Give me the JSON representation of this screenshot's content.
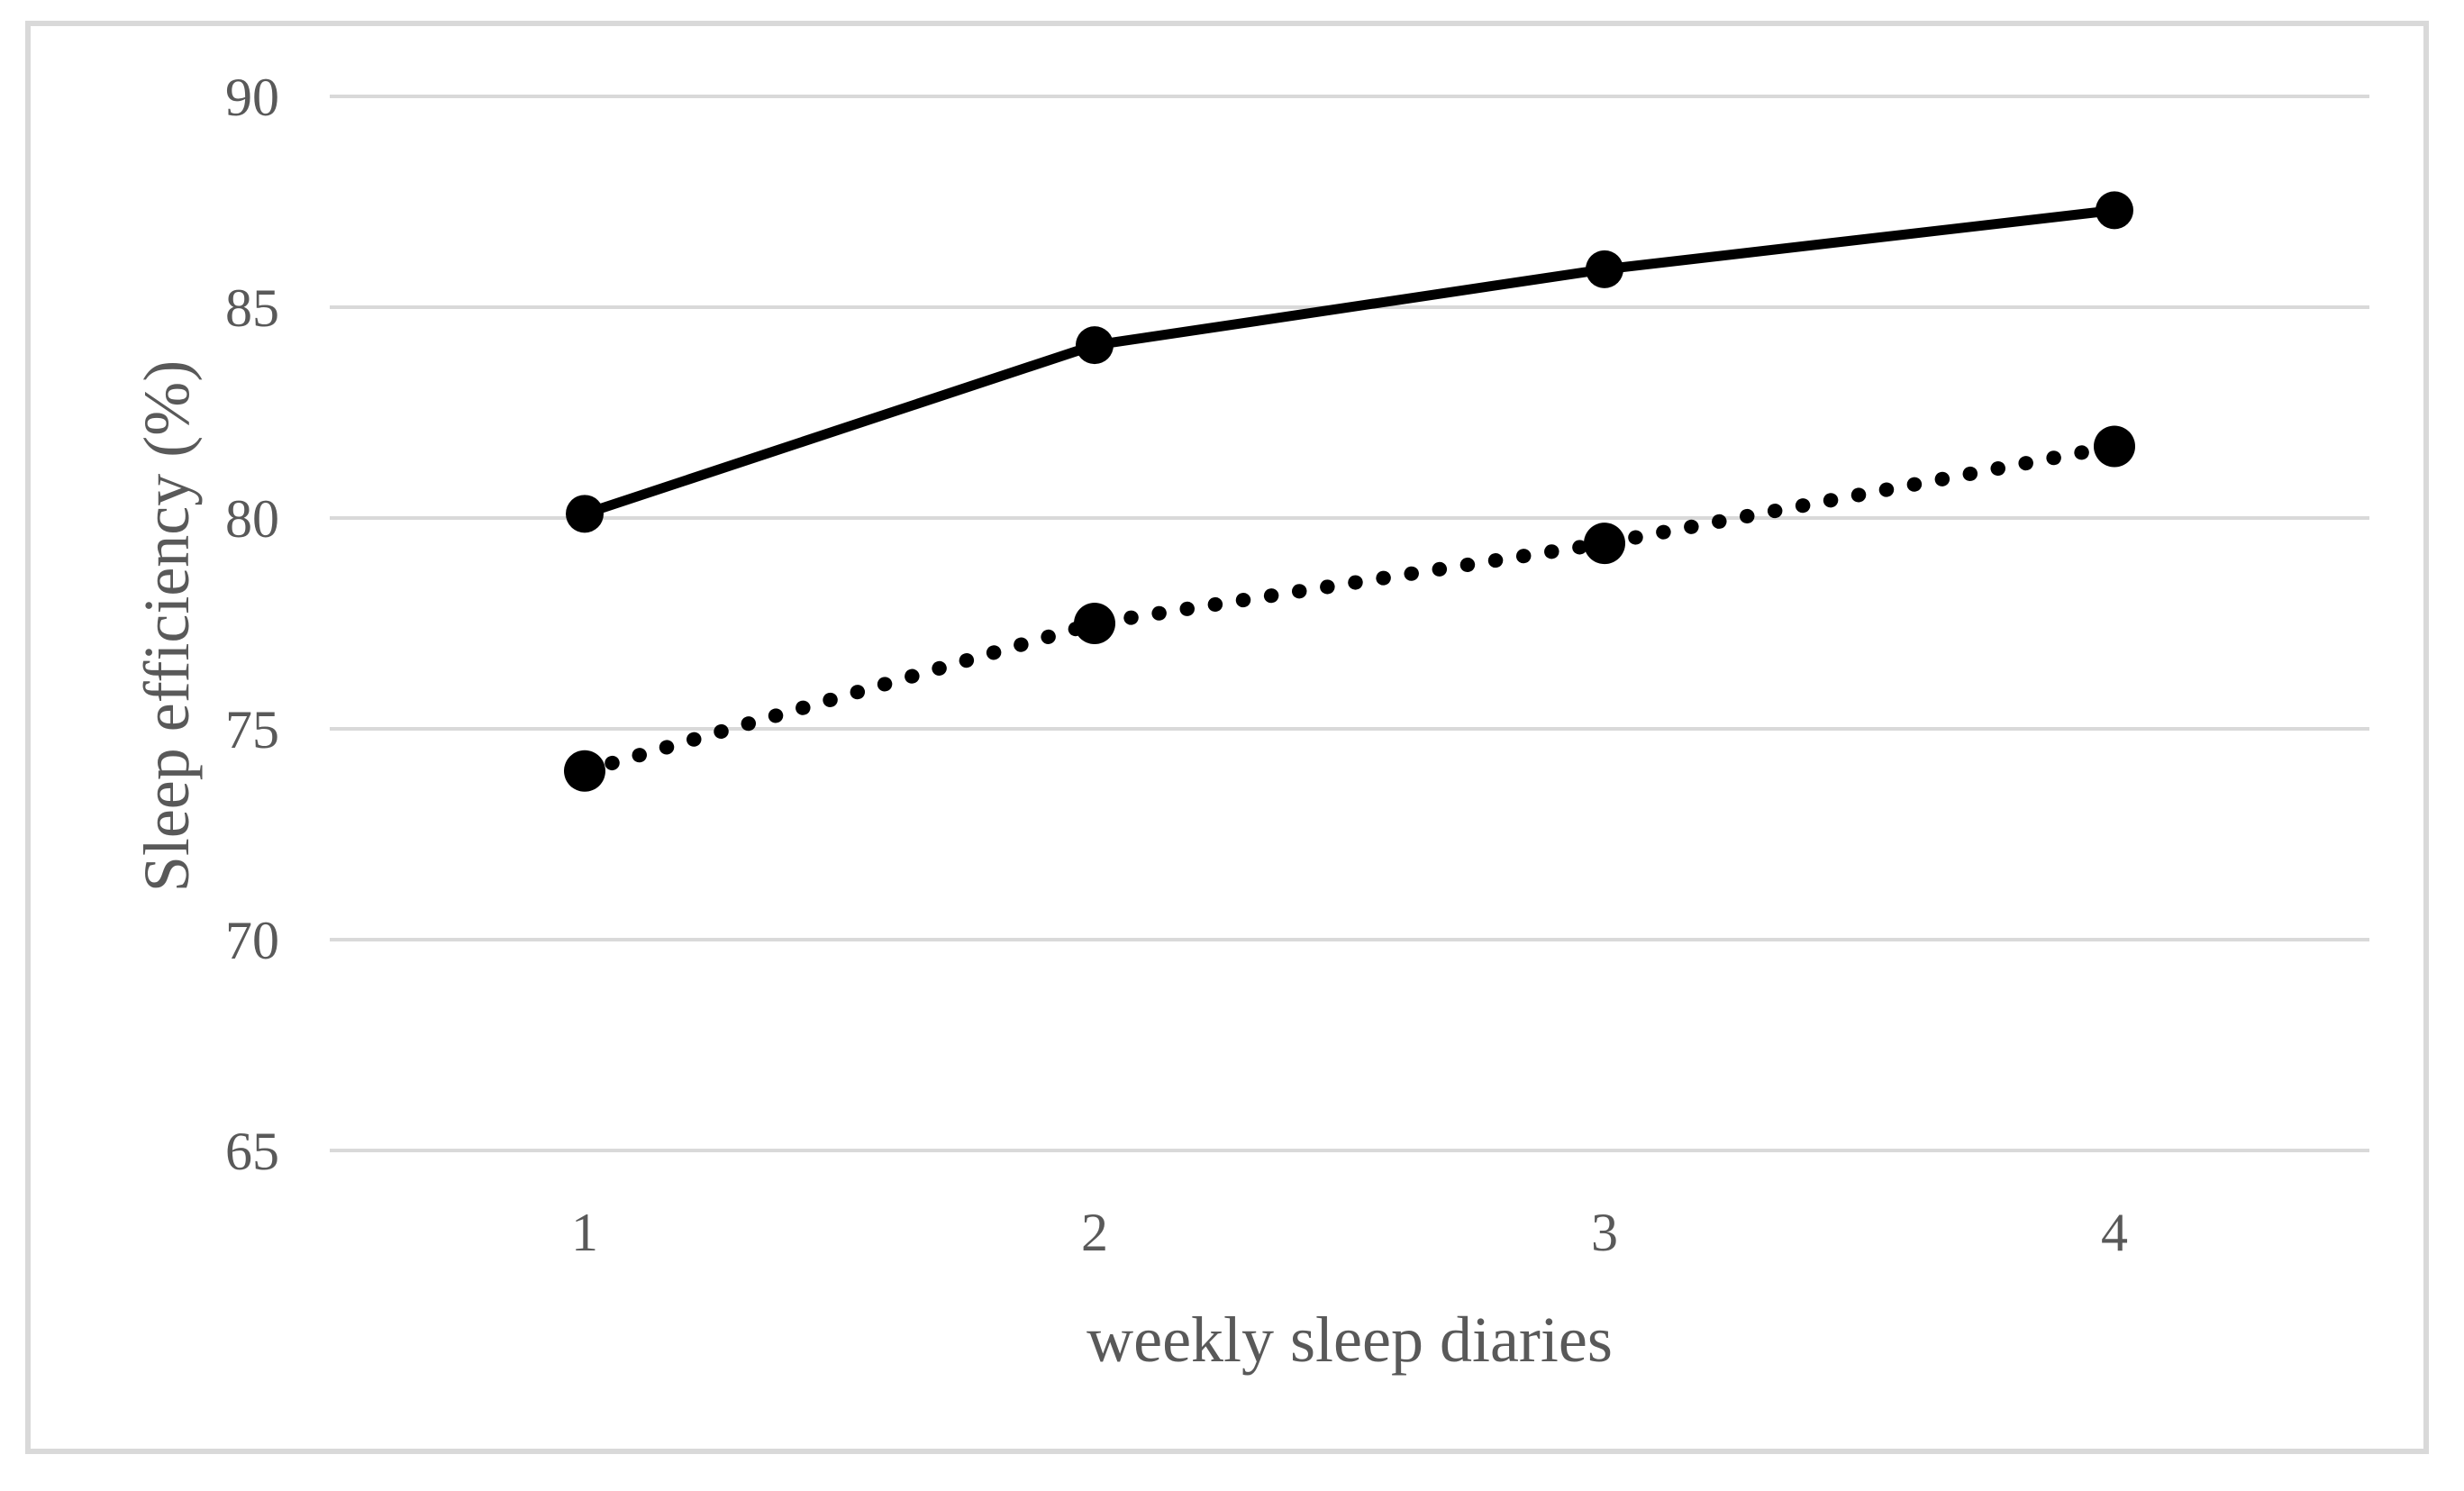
{
  "figure": {
    "background": "#ffffff",
    "border_color": "#d9d9d9"
  },
  "chart_data": {
    "type": "line",
    "title": "",
    "xlabel": "weekly sleep diaries",
    "ylabel": "Sleep efficiency (%)",
    "categories": [
      "1",
      "2",
      "3",
      "4"
    ],
    "series": [
      {
        "name": "solid line",
        "style": "solid",
        "color": "#000000",
        "values": [
          80.1,
          84.1,
          85.9,
          87.3
        ]
      },
      {
        "name": "dotted line",
        "style": "dotted",
        "color": "#000000",
        "values": [
          74.0,
          77.5,
          79.4,
          81.7
        ]
      }
    ],
    "ylim": [
      65,
      90
    ],
    "yticks": [
      65,
      70,
      75,
      80,
      85,
      90
    ],
    "grid": true,
    "legend": "none",
    "gridline_color": "#d9d9d9",
    "axis_text_color": "#595959"
  }
}
